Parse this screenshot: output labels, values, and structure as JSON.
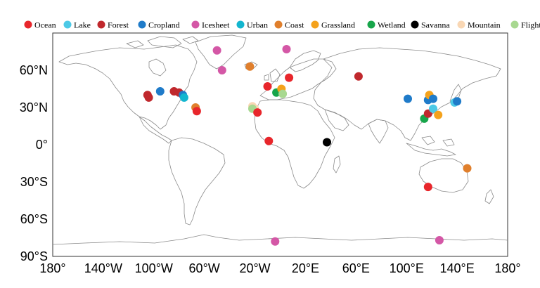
{
  "legend": [
    {
      "label": "Ocean",
      "color": "#e8262b"
    },
    {
      "label": "Lake",
      "color": "#4cc9e6"
    },
    {
      "label": "Forest",
      "color": "#c0282d"
    },
    {
      "label": "Cropland",
      "color": "#1f7bc9"
    },
    {
      "label": "Icesheet",
      "color": "#d457a6"
    },
    {
      "label": "Urban",
      "color": "#13b6cf"
    },
    {
      "label": "Coast",
      "color": "#e07f2c"
    },
    {
      "label": "Grassland",
      "color": "#f4a21c"
    },
    {
      "label": "Wetland",
      "color": "#17a54a"
    },
    {
      "label": "Savanna",
      "color": "#000000"
    },
    {
      "label": "Mountain",
      "color": "#f9d7b4"
    },
    {
      "label": "Flight",
      "color": "#a8d890"
    }
  ],
  "axes": {
    "x_ticks": [
      {
        "lon": -180,
        "label": "180°"
      },
      {
        "lon": -140,
        "label": "140°W"
      },
      {
        "lon": -100,
        "label": "100°W"
      },
      {
        "lon": -60,
        "label": "60°W"
      },
      {
        "lon": -20,
        "label": "20°W"
      },
      {
        "lon": 20,
        "label": "20°E"
      },
      {
        "lon": 60,
        "label": "60°E"
      },
      {
        "lon": 100,
        "label": "100°E"
      },
      {
        "lon": 140,
        "label": "140°E"
      },
      {
        "lon": 180,
        "label": "180°"
      }
    ],
    "y_ticks": [
      {
        "lat": 60,
        "label": "60°N"
      },
      {
        "lat": 30,
        "label": "30°N"
      },
      {
        "lat": 0,
        "label": "0°"
      },
      {
        "lat": -30,
        "label": "30°S"
      },
      {
        "lat": -60,
        "label": "60°S"
      },
      {
        "lat": -90,
        "label": "90°S"
      }
    ],
    "lon_range": [
      -180,
      180
    ],
    "lat_range": [
      -90,
      90
    ]
  },
  "sites": [
    {
      "category": "Forest",
      "lon": -105,
      "lat": 40
    },
    {
      "category": "Forest",
      "lon": -104,
      "lat": 38
    },
    {
      "category": "Cropland",
      "lon": -95,
      "lat": 43
    },
    {
      "category": "Forest",
      "lon": -84,
      "lat": 43
    },
    {
      "category": "Forest",
      "lon": -80,
      "lat": 42
    },
    {
      "category": "Cropland",
      "lon": -77,
      "lat": 40
    },
    {
      "category": "Urban",
      "lon": -76,
      "lat": 38
    },
    {
      "category": "Coast",
      "lon": -67,
      "lat": 30
    },
    {
      "category": "Ocean",
      "lon": -66,
      "lat": 27
    },
    {
      "category": "Icesheet",
      "lon": -50,
      "lat": 76
    },
    {
      "category": "Icesheet",
      "lon": -46,
      "lat": 60
    },
    {
      "category": "Coast",
      "lon": -24,
      "lat": 63
    },
    {
      "category": "Mountain",
      "lon": -22,
      "lat": 31
    },
    {
      "category": "Mountain",
      "lon": -20,
      "lat": 29
    },
    {
      "category": "Flight",
      "lon": -22,
      "lat": 29
    },
    {
      "category": "Ocean",
      "lon": -18,
      "lat": 26
    },
    {
      "category": "Ocean",
      "lon": -10,
      "lat": 47
    },
    {
      "category": "Ocean",
      "lon": -9,
      "lat": 3
    },
    {
      "category": "Icesheet",
      "lon": -4,
      "lat": -78
    },
    {
      "category": "Wetland",
      "lon": -3,
      "lat": 42
    },
    {
      "category": "Grassland",
      "lon": 1,
      "lat": 45
    },
    {
      "category": "Flight",
      "lon": 2,
      "lat": 41
    },
    {
      "category": "Icesheet",
      "lon": 5,
      "lat": 77
    },
    {
      "category": "Ocean",
      "lon": 7,
      "lat": 54
    },
    {
      "category": "Savanna",
      "lon": 37,
      "lat": 2
    },
    {
      "category": "Forest",
      "lon": 62,
      "lat": 55
    },
    {
      "category": "Cropland",
      "lon": 101,
      "lat": 37
    },
    {
      "category": "Wetland",
      "lon": 114,
      "lat": 21
    },
    {
      "category": "Forest",
      "lon": 117,
      "lat": 25
    },
    {
      "category": "Cropland",
      "lon": 117,
      "lat": 36
    },
    {
      "category": "Grassland",
      "lon": 118,
      "lat": 40
    },
    {
      "category": "Cropland",
      "lon": 121,
      "lat": 37
    },
    {
      "category": "Lake",
      "lon": 121,
      "lat": 29
    },
    {
      "category": "Grassland",
      "lon": 125,
      "lat": 24
    },
    {
      "category": "Lake",
      "lon": 138,
      "lat": 34
    },
    {
      "category": "Cropland",
      "lon": 140,
      "lat": 35
    },
    {
      "category": "Ocean",
      "lon": 117,
      "lat": -34
    },
    {
      "category": "Coast",
      "lon": 148,
      "lat": -19
    },
    {
      "category": "Icesheet",
      "lon": 126,
      "lat": -77
    }
  ]
}
